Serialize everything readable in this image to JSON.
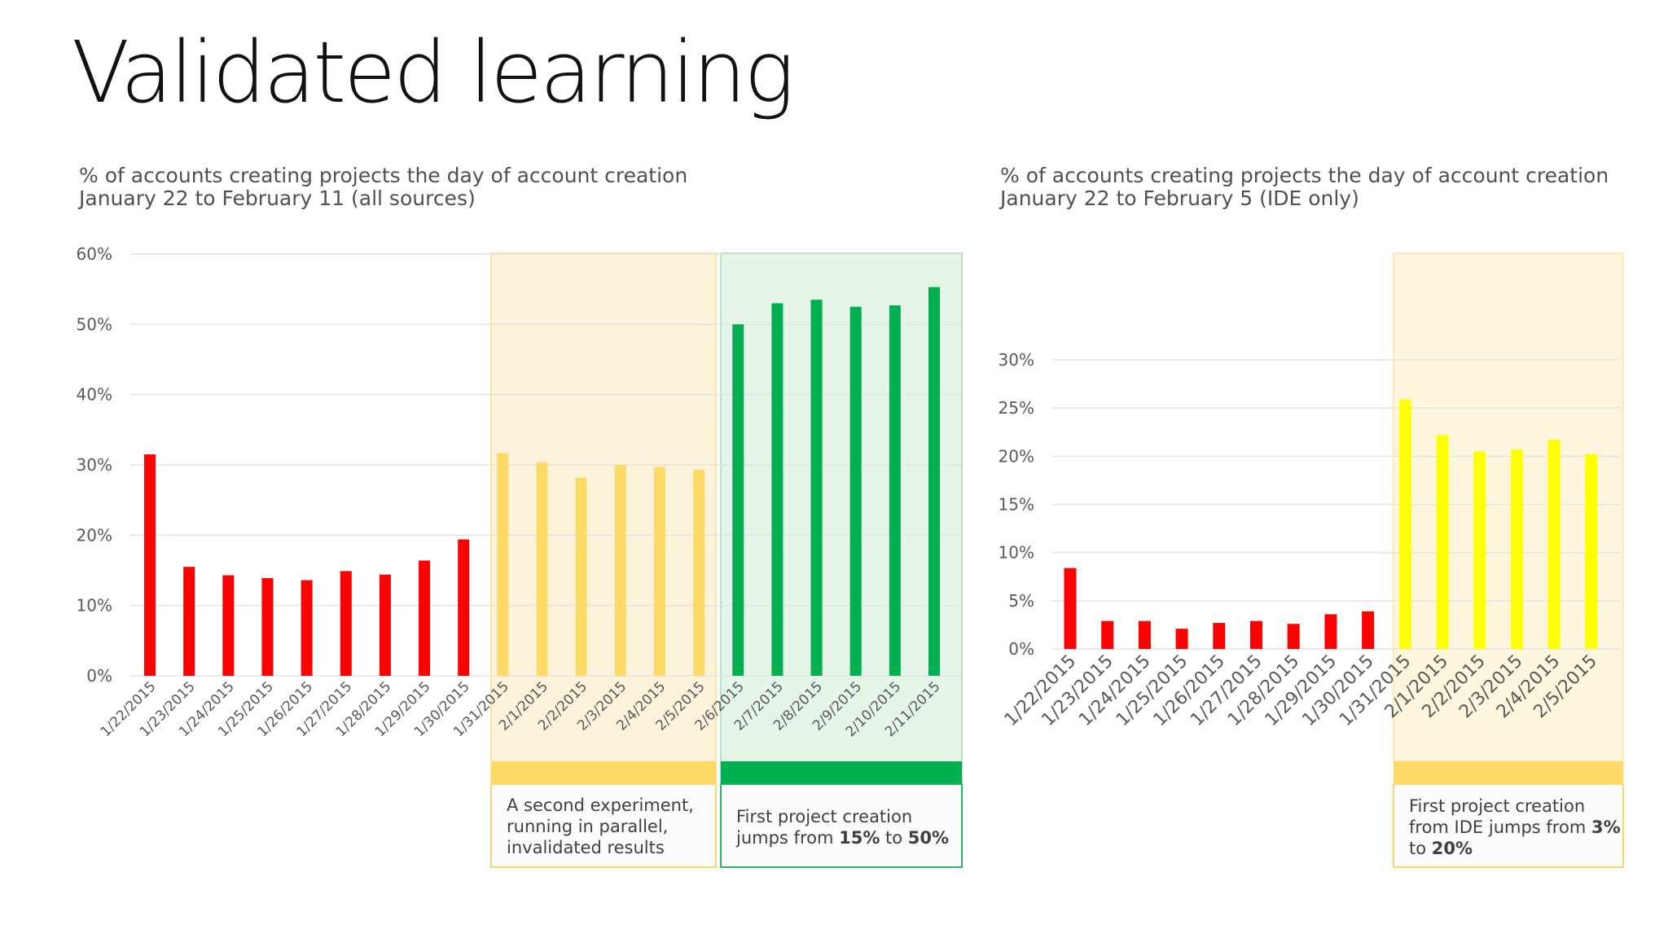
{
  "title": "Validated learning",
  "colors": {
    "red": "#ff0000",
    "light_orange": "#ffd966",
    "green": "#00b050",
    "yellow": "#ffff00",
    "orange_panel": "#fdf4dc",
    "green_panel": "#e4f5e8",
    "yellow_panel": "#fef7dd",
    "band_orange": "#ffd966",
    "band_green": "#00b050"
  },
  "chart_left": {
    "subtitle_line1": "% of accounts creating projects the day of account creation",
    "subtitle_line2": "January 22 to February 11 (all sources)"
  },
  "chart_right": {
    "subtitle_line1": "% of accounts creating projects the day of account creation",
    "subtitle_line2": "January 22 to February 5 (IDE only)"
  },
  "annotations": {
    "left_orange": {
      "line1": "A second experiment,",
      "line2": "running in parallel,",
      "line3": "invalidated results"
    },
    "left_green": {
      "line1": "First project creation",
      "line2_pre": "jumps from ",
      "line2_b1": "15%",
      "line2_mid": " to ",
      "line2_b2": "50%"
    },
    "right_yellow": {
      "line1": "First project creation",
      "line2_pre": "from IDE jumps from ",
      "line2_b1": "3%",
      "line3_pre": "to ",
      "line3_b2": "20%"
    }
  },
  "chart_data": [
    {
      "type": "bar",
      "title": "% of accounts creating projects the day of account creation",
      "subtitle": "January 22 to February 11 (all sources)",
      "xlabel": "",
      "ylabel": "",
      "ylim": [
        0,
        60
      ],
      "yticks": [
        0,
        10,
        20,
        30,
        40,
        50,
        60
      ],
      "ytick_labels": [
        "0%",
        "10%",
        "20%",
        "30%",
        "40%",
        "50%",
        "60%"
      ],
      "grid": true,
      "categories": [
        "1/22/2015",
        "1/23/2015",
        "1/24/2015",
        "1/25/2015",
        "1/26/2015",
        "1/27/2015",
        "1/28/2015",
        "1/29/2015",
        "1/30/2015",
        "1/31/2015",
        "2/1/2015",
        "2/2/2015",
        "2/3/2015",
        "2/4/2015",
        "2/5/2015",
        "2/6/2015",
        "2/7/2015",
        "2/8/2015",
        "2/9/2015",
        "2/10/2015",
        "2/11/2015"
      ],
      "values": [
        31.5,
        15.5,
        14.3,
        13.9,
        13.6,
        14.9,
        14.4,
        16.4,
        19.4,
        31.7,
        30.4,
        28.2,
        30.0,
        29.7,
        29.3,
        50.0,
        53.0,
        53.5,
        52.5,
        52.7,
        55.3
      ],
      "bar_colors": [
        "red",
        "red",
        "red",
        "red",
        "red",
        "red",
        "red",
        "red",
        "red",
        "light_orange",
        "light_orange",
        "light_orange",
        "light_orange",
        "light_orange",
        "light_orange",
        "green",
        "green",
        "green",
        "green",
        "green",
        "green"
      ]
    },
    {
      "type": "bar",
      "title": "% of accounts creating projects the day of account creation",
      "subtitle": "January 22 to February 5 (IDE only)",
      "xlabel": "",
      "ylabel": "",
      "ylim": [
        0,
        30
      ],
      "yticks": [
        0,
        5,
        10,
        15,
        20,
        25,
        30
      ],
      "ytick_labels": [
        "0%",
        "5%",
        "10%",
        "15%",
        "20%",
        "25%",
        "30%"
      ],
      "grid": true,
      "categories": [
        "1/22/2015",
        "1/23/2015",
        "1/24/2015",
        "1/25/2015",
        "1/26/2015",
        "1/27/2015",
        "1/28/2015",
        "1/29/2015",
        "1/30/2015",
        "1/31/2015",
        "2/1/2015",
        "2/2/2015",
        "2/3/2015",
        "2/4/2015",
        "2/5/2015"
      ],
      "values": [
        8.4,
        2.9,
        2.9,
        2.1,
        2.7,
        2.9,
        2.6,
        3.6,
        3.9,
        25.9,
        22.2,
        20.5,
        20.7,
        21.7,
        20.2
      ],
      "bar_colors": [
        "red",
        "red",
        "red",
        "red",
        "red",
        "red",
        "red",
        "red",
        "red",
        "yellow",
        "yellow",
        "yellow",
        "yellow",
        "yellow",
        "yellow"
      ]
    }
  ]
}
